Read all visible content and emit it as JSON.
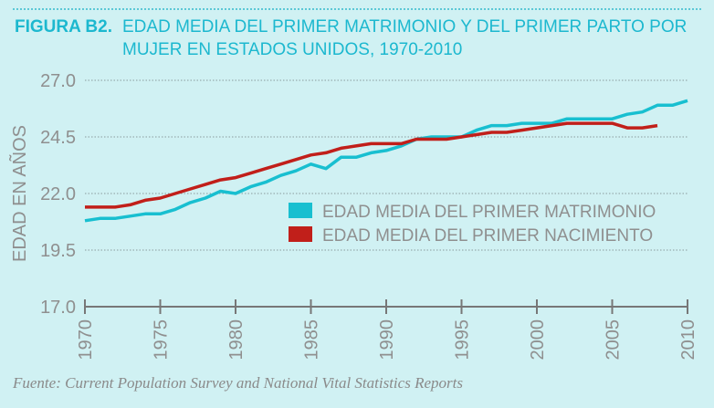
{
  "header": {
    "figure_label": "FIGURA B2.",
    "title": "EDAD MEDIA DEL PRIMER MATRIMONIO Y DEL PRIMER PARTO POR MUJER EN ESTADOS UNIDOS, 1970-2010"
  },
  "footer": {
    "source": "Fuente: Current Population Survey and National Vital Statistics Reports"
  },
  "colors": {
    "background": "#d0f1f3",
    "title": "#1cb8cf",
    "marriage": "#18bfd0",
    "birth": "#c11f1a"
  },
  "chart_data": {
    "type": "line",
    "title": "EDAD MEDIA DEL PRIMER MATRIMONIO Y DEL PRIMER PARTO POR MUJER EN ESTADOS UNIDOS, 1970-2010",
    "xlabel": "",
    "ylabel": "EDAD EN AÑOS",
    "xlim": [
      1970,
      2010
    ],
    "ylim": [
      17.0,
      27.0
    ],
    "xticks": [
      "1970",
      "1975",
      "1980",
      "1985",
      "1990",
      "1995",
      "2000",
      "2005",
      "2010"
    ],
    "yticks": [
      "17.0",
      "19.5",
      "22.0",
      "24.5",
      "27.0"
    ],
    "grid": "horizontal dotted",
    "legend": "center-right",
    "series": [
      {
        "name": "EDAD MEDIA DEL PRIMER MATRIMONIO",
        "color": "#18bfd0",
        "x": [
          1970,
          1971,
          1972,
          1973,
          1974,
          1975,
          1976,
          1977,
          1978,
          1979,
          1980,
          1981,
          1982,
          1983,
          1984,
          1985,
          1986,
          1987,
          1988,
          1989,
          1990,
          1991,
          1992,
          1993,
          1994,
          1995,
          1996,
          1997,
          1998,
          1999,
          2000,
          2001,
          2002,
          2003,
          2004,
          2005,
          2006,
          2007,
          2008,
          2009,
          2010
        ],
        "values": [
          20.8,
          20.9,
          20.9,
          21.0,
          21.1,
          21.1,
          21.3,
          21.6,
          21.8,
          22.1,
          22.0,
          22.3,
          22.5,
          22.8,
          23.0,
          23.3,
          23.1,
          23.6,
          23.6,
          23.8,
          23.9,
          24.1,
          24.4,
          24.5,
          24.5,
          24.5,
          24.8,
          25.0,
          25.0,
          25.1,
          25.1,
          25.1,
          25.3,
          25.3,
          25.3,
          25.3,
          25.5,
          25.6,
          25.9,
          25.9,
          26.1
        ]
      },
      {
        "name": "EDAD MEDIA DEL PRIMER NACIMIENTO",
        "color": "#c11f1a",
        "x": [
          1970,
          1971,
          1972,
          1973,
          1974,
          1975,
          1976,
          1977,
          1978,
          1979,
          1980,
          1981,
          1982,
          1983,
          1984,
          1985,
          1986,
          1987,
          1988,
          1989,
          1990,
          1991,
          1992,
          1993,
          1994,
          1995,
          1996,
          1997,
          1998,
          1999,
          2000,
          2001,
          2002,
          2003,
          2004,
          2005,
          2006,
          2007,
          2008
        ],
        "values": [
          21.4,
          21.4,
          21.4,
          21.5,
          21.7,
          21.8,
          22.0,
          22.2,
          22.4,
          22.6,
          22.7,
          22.9,
          23.1,
          23.3,
          23.5,
          23.7,
          23.8,
          24.0,
          24.1,
          24.2,
          24.2,
          24.2,
          24.4,
          24.4,
          24.4,
          24.5,
          24.6,
          24.7,
          24.7,
          24.8,
          24.9,
          25.0,
          25.1,
          25.1,
          25.1,
          25.1,
          24.9,
          24.9,
          25.0
        ]
      }
    ]
  }
}
